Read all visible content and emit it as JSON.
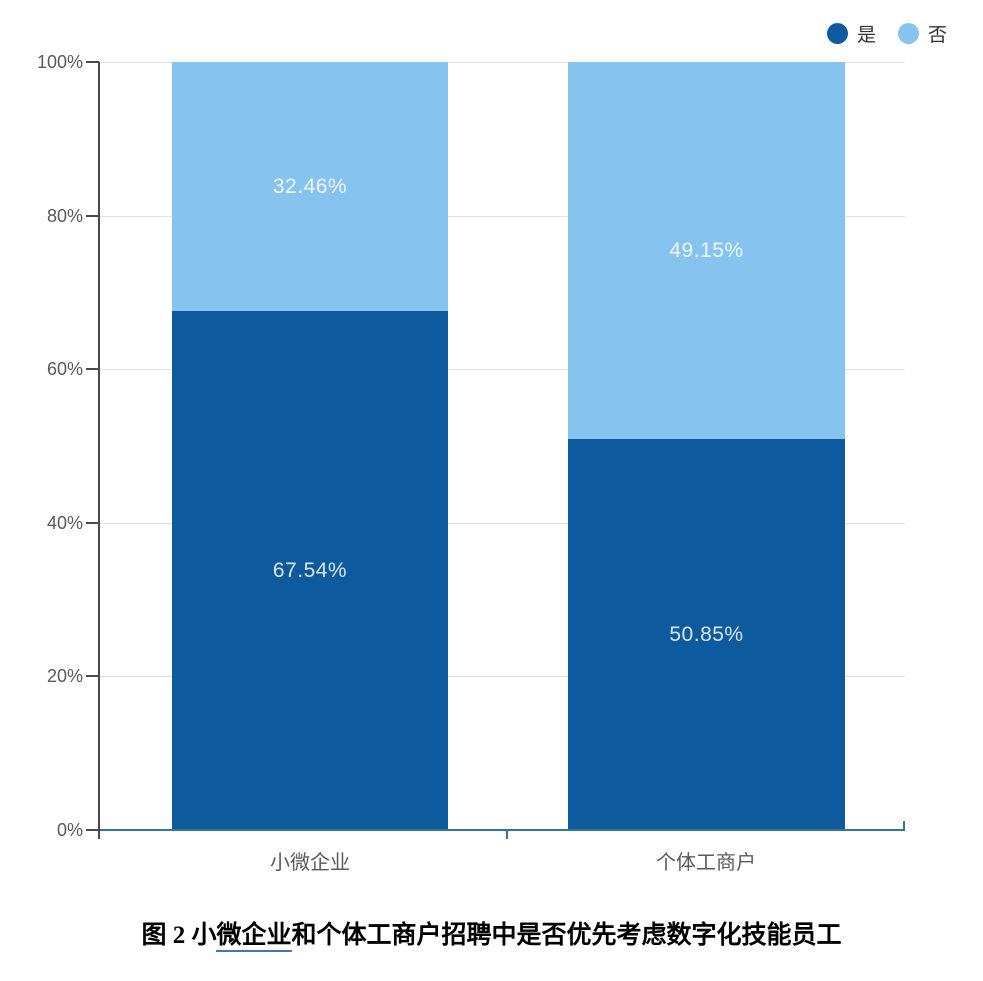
{
  "chart_data": {
    "type": "bar",
    "subtype": "stacked-percentage-column",
    "categories": [
      "小微企业",
      "个体工商户"
    ],
    "series": [
      {
        "name": "是",
        "color": "#0D5A9E",
        "values": [
          67.54,
          50.85
        ],
        "labels": [
          "67.54%",
          "50.85%"
        ]
      },
      {
        "name": "否",
        "color": "#87C3EF",
        "values": [
          32.46,
          49.15
        ],
        "labels": [
          "32.46%",
          "49.15%"
        ]
      }
    ],
    "yticks": [
      "0%",
      "20%",
      "40%",
      "60%",
      "80%",
      "100%"
    ],
    "ylim": [
      0,
      100
    ],
    "xlabel": "",
    "ylabel": "",
    "grid": "horizontal",
    "legend_position": "top-right"
  },
  "caption": {
    "prefix": "图 2  小",
    "underlined": "微企业",
    "suffix": "和个体工商户招聘中是否优先考虑数字化技能员工"
  },
  "colors": {
    "series_yes": "#0D5A9E",
    "series_no": "#87C3EF",
    "x_axis_line": "#31788F",
    "y_axis_line": "#4a4a4a",
    "gridline": "#e2e2e2",
    "axis_text": "#595959",
    "caption_underline": "#4472C4",
    "bar_value_text": "rgba(255,255,255,0.85)"
  }
}
